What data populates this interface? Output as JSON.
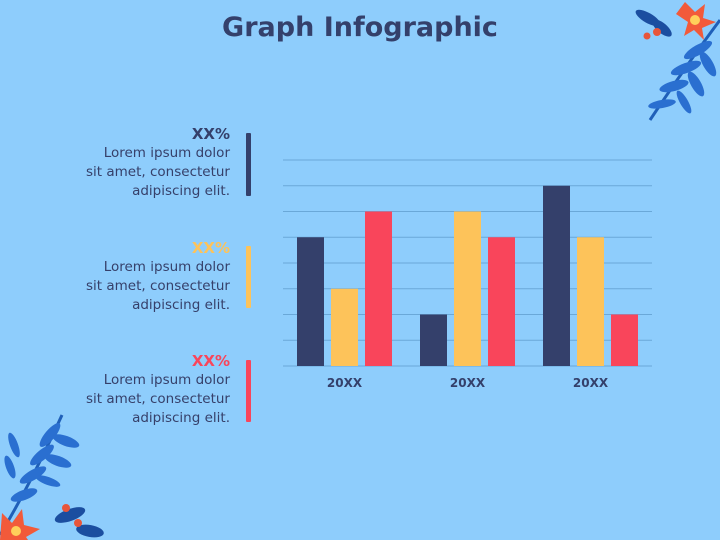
{
  "title": "Graph Infographic",
  "colors": {
    "background": "#8ecdfc",
    "navy": "#34406b",
    "yellow": "#fdc35a",
    "red": "#f9455b",
    "grid": "#6aa8d8"
  },
  "stats": [
    {
      "value": "XX%",
      "text": [
        "Lorem ipsum dolor",
        "sit amet, consectetur",
        "adipiscing elit."
      ],
      "color": "#34406b"
    },
    {
      "value": "XX%",
      "text": [
        "Lorem ipsum dolor",
        "sit amet, consectetur",
        "adipiscing elit."
      ],
      "color": "#fdc35a"
    },
    {
      "value": "XX%",
      "text": [
        "Lorem ipsum dolor",
        "sit amet, consectetur",
        "adipiscing elit."
      ],
      "color": "#f9455b"
    }
  ],
  "chart_data": {
    "type": "bar",
    "categories": [
      "20XX",
      "20XX",
      "20XX"
    ],
    "series": [
      {
        "values": [
          5,
          2,
          7
        ],
        "color": "#34406b"
      },
      {
        "values": [
          3,
          6,
          5
        ],
        "color": "#fdc35a"
      },
      {
        "values": [
          6,
          5,
          2
        ],
        "color": "#f9455b"
      }
    ],
    "ylim": [
      0,
      8
    ],
    "grid": true,
    "xlabel": "",
    "ylabel": ""
  }
}
